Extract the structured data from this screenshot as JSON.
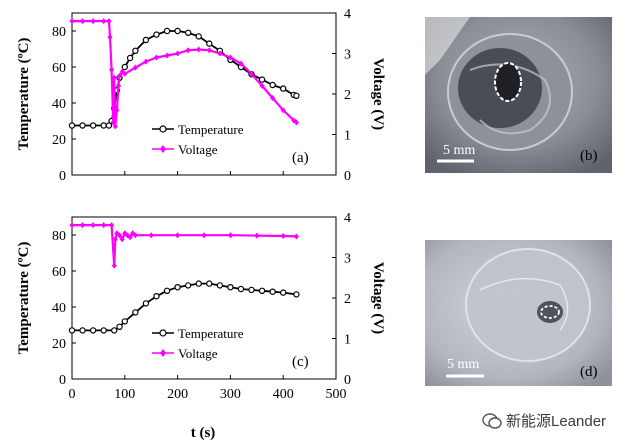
{
  "chart_data": [
    {
      "panel": "(a)",
      "type": "line",
      "xlabel": "",
      "ylabel": "Temperature (ºC)",
      "y2label": "Voltage (V)",
      "xlim": [
        0,
        500
      ],
      "ylim": [
        0,
        90
      ],
      "y2lim": [
        0,
        4
      ],
      "yticks": [
        "0",
        "20",
        "40",
        "60",
        "80"
      ],
      "y2ticks": [
        "0",
        "1",
        "2",
        "3",
        "4"
      ],
      "legend": {
        "position": "lower-center",
        "entries": [
          "Temperature",
          "Voltage"
        ]
      },
      "series": [
        {
          "name": "Temperature",
          "axis": "left",
          "color": "#000000",
          "marker": "open-circle",
          "x": [
            0,
            20,
            40,
            60,
            70,
            75,
            80,
            85,
            90,
            100,
            110,
            120,
            140,
            160,
            180,
            200,
            220,
            240,
            260,
            280,
            300,
            320,
            340,
            360,
            380,
            400,
            420,
            425
          ],
          "y": [
            27.5,
            27.5,
            27.5,
            27.5,
            27.5,
            30,
            37,
            47,
            54,
            60,
            65,
            69,
            75,
            78,
            80,
            80,
            79,
            77,
            73,
            69,
            64,
            60,
            56,
            53,
            50,
            48,
            44.5,
            44
          ]
        },
        {
          "name": "Voltage",
          "axis": "right",
          "color": "#ff00ff",
          "marker": "diamond",
          "x": [
            0,
            20,
            40,
            60,
            70,
            72,
            75,
            78,
            80,
            82,
            85,
            88,
            90,
            95,
            100,
            120,
            140,
            160,
            180,
            200,
            220,
            240,
            260,
            280,
            300,
            320,
            340,
            360,
            380,
            400,
            420,
            425
          ],
          "y": [
            3.8,
            3.8,
            3.8,
            3.8,
            3.8,
            3.4,
            2.6,
            1.3,
            2.4,
            1.2,
            1.6,
            2.2,
            2.45,
            2.55,
            2.5,
            2.65,
            2.8,
            2.9,
            2.95,
            3.0,
            3.08,
            3.1,
            3.08,
            3.0,
            2.9,
            2.75,
            2.5,
            2.2,
            1.9,
            1.6,
            1.35,
            1.3
          ]
        }
      ]
    },
    {
      "panel": "(c)",
      "type": "line",
      "xlabel": "t (s)",
      "ylabel": "Temperature (ºC)",
      "y2label": "Voltage (V)",
      "xlim": [
        0,
        500
      ],
      "ylim": [
        0,
        90
      ],
      "y2lim": [
        0,
        4
      ],
      "xticks": [
        "0",
        "100",
        "200",
        "300",
        "400",
        "500"
      ],
      "yticks": [
        "0",
        "20",
        "40",
        "60",
        "80"
      ],
      "y2ticks": [
        "0",
        "1",
        "2",
        "3",
        "4"
      ],
      "legend": {
        "position": "lower-center",
        "entries": [
          "Temperature",
          "Voltage"
        ]
      },
      "series": [
        {
          "name": "Temperature",
          "axis": "left",
          "color": "#000000",
          "marker": "open-circle",
          "x": [
            0,
            20,
            40,
            60,
            80,
            90,
            100,
            120,
            140,
            160,
            180,
            200,
            220,
            240,
            260,
            280,
            300,
            320,
            340,
            360,
            380,
            400,
            425
          ],
          "y": [
            27,
            27,
            27,
            27,
            27,
            29,
            32,
            37,
            42,
            46,
            49,
            51,
            52,
            53,
            53,
            52,
            51,
            50,
            49.5,
            49,
            48.5,
            48,
            47
          ]
        },
        {
          "name": "Voltage",
          "axis": "right",
          "color": "#ff00ff",
          "marker": "diamond",
          "x": [
            0,
            20,
            40,
            60,
            75,
            80,
            82,
            85,
            90,
            95,
            100,
            105,
            110,
            115,
            120,
            150,
            200,
            250,
            300,
            350,
            400,
            425
          ],
          "y": [
            3.8,
            3.8,
            3.8,
            3.8,
            3.8,
            2.8,
            3.45,
            3.6,
            3.55,
            3.45,
            3.6,
            3.55,
            3.5,
            3.6,
            3.55,
            3.55,
            3.55,
            3.55,
            3.55,
            3.54,
            3.53,
            3.52
          ]
        }
      ]
    }
  ],
  "photos": [
    {
      "panel_label": "(b)",
      "scale_bar": "5 mm"
    },
    {
      "panel_label": "(d)",
      "scale_bar": "5 mm"
    }
  ],
  "watermark": "新能源Leander",
  "colors": {
    "temperature": "#000000",
    "voltage": "#ff00ff",
    "photo_bg_b": "#8c9098",
    "photo_bg_d": "#b9bbc4"
  }
}
